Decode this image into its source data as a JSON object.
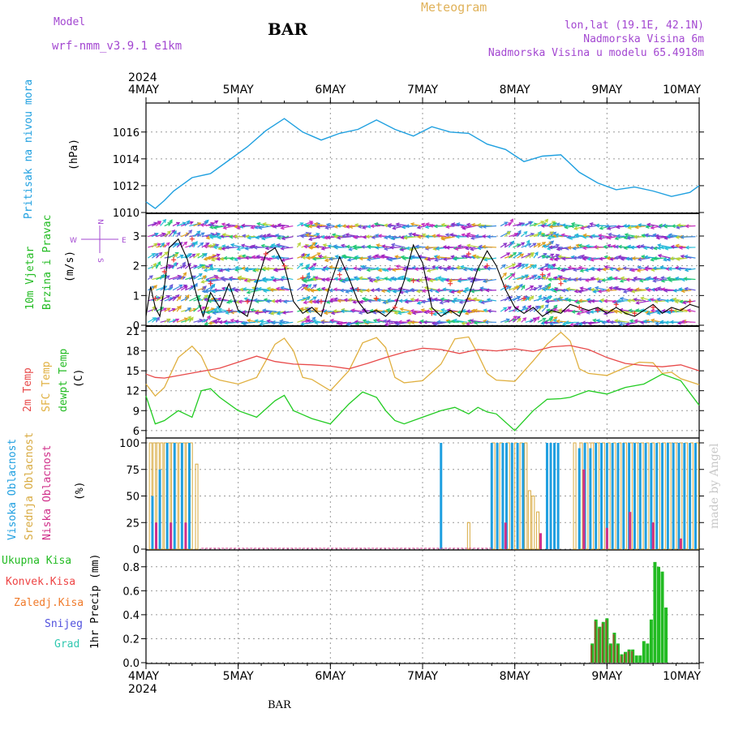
{
  "header": {
    "model_label": "Model",
    "model_name": "wrf-nmm_v3.9.1 e1km",
    "station": "BAR",
    "meteogram": "Meteogram",
    "lonlat": "lon,lat (19.1E, 42.1N)",
    "elevation": "Nadmorska Visina 6m",
    "model_elevation": "Nadmorska Visina u modelu 65.4918m"
  },
  "footer": {
    "station": "BAR",
    "credit": "made by Angel"
  },
  "time_axis": {
    "year": "2024",
    "ticks": [
      "4MAY",
      "5MAY",
      "6MAY",
      "7MAY",
      "8MAY",
      "9MAY",
      "10MAY"
    ],
    "range_days": [
      0,
      6
    ]
  },
  "colors": {
    "pressure": "#1fa0e0",
    "temp2m": "#e84a4a",
    "sfc": "#e0b040",
    "dew": "#22cc22",
    "visoka": "#1f9fe0",
    "srednja": "#d8aa40",
    "niska": "#d0308a",
    "ukupna": "#22bb22",
    "konvek": "#ee4444",
    "zaledj": "#f07a2a",
    "snijeg": "#5050dd",
    "grad": "#30c8b0",
    "wind_speed": "#000000",
    "wind_dir": "#ee3333"
  },
  "chart_data": [
    {
      "type": "line",
      "panel": "pressure",
      "labels": [
        "Pritisak na nivou mora",
        "(hPa)"
      ],
      "yticks": [
        1010,
        1012,
        1014,
        1016
      ],
      "ylim": [
        1010,
        1017.8
      ],
      "series": [
        {
          "x": [
            0,
            0.1,
            0.2,
            0.3,
            0.5,
            0.7,
            0.9,
            1.1,
            1.3,
            1.5,
            1.7,
            1.9,
            2.1,
            2.3,
            2.5,
            2.7,
            2.9,
            3.1,
            3.3,
            3.5,
            3.7,
            3.9,
            4.1,
            4.3,
            4.5,
            4.7,
            4.9,
            5.1,
            5.3,
            5.5,
            5.7,
            5.9,
            6.0
          ],
          "y": [
            1010.8,
            1010.3,
            1010.9,
            1011.6,
            1012.6,
            1012.9,
            1013.9,
            1014.9,
            1016.1,
            1017.0,
            1016.0,
            1015.4,
            1015.9,
            1016.2,
            1016.9,
            1016.2,
            1015.7,
            1016.4,
            1016.0,
            1015.9,
            1015.1,
            1014.7,
            1013.8,
            1014.2,
            1014.3,
            1013.0,
            1012.2,
            1011.7,
            1011.9,
            1011.6,
            1011.2,
            1011.5,
            1012.0
          ]
        }
      ]
    },
    {
      "type": "line",
      "panel": "wind",
      "labels": [
        "10m Vjetar",
        "Brzina i Pravac",
        "(m/s)"
      ],
      "compass": {
        "n": "N",
        "e": "E",
        "s": "S",
        "w": "W"
      },
      "yticks": [
        0,
        1,
        2,
        3
      ],
      "ylim": [
        0,
        3.6
      ],
      "series": [
        {
          "name": "speed",
          "x": [
            0,
            0.05,
            0.1,
            0.15,
            0.2,
            0.25,
            0.35,
            0.45,
            0.55,
            0.62,
            0.7,
            0.8,
            0.9,
            1.0,
            1.1,
            1.2,
            1.3,
            1.4,
            1.5,
            1.6,
            1.7,
            1.8,
            1.9,
            2.0,
            2.1,
            2.2,
            2.3,
            2.4,
            2.5,
            2.6,
            2.7,
            2.8,
            2.9,
            3.0,
            3.1,
            3.2,
            3.3,
            3.4,
            3.5,
            3.6,
            3.7,
            3.8,
            3.9,
            4.0,
            4.1,
            4.2,
            4.3,
            4.4,
            4.5,
            4.6,
            4.7,
            4.8,
            4.9,
            5.0,
            5.1,
            5.2,
            5.3,
            5.4,
            5.5,
            5.6,
            5.7,
            5.8,
            5.9,
            6.0
          ],
          "y": [
            0.3,
            1.3,
            0.6,
            0.3,
            1.3,
            2.6,
            2.9,
            2.2,
            1.0,
            0.3,
            1.1,
            0.6,
            1.4,
            0.5,
            0.3,
            1.4,
            2.4,
            2.6,
            2.0,
            0.8,
            0.4,
            0.6,
            0.3,
            1.4,
            2.3,
            1.6,
            0.8,
            0.4,
            0.5,
            0.3,
            0.6,
            1.5,
            2.7,
            2.1,
            0.6,
            0.3,
            0.5,
            0.3,
            1.0,
            1.9,
            2.5,
            2.0,
            1.2,
            0.6,
            0.4,
            0.6,
            0.3,
            0.5,
            0.4,
            0.7,
            0.6,
            0.5,
            0.6,
            0.4,
            0.6,
            0.4,
            0.3,
            0.5,
            0.7,
            0.4,
            0.6,
            0.5,
            0.7,
            0.6
          ]
        },
        {
          "name": "direction",
          "x": [
            0.1,
            0.2,
            0.3,
            0.5,
            0.7,
            0.9,
            1.1,
            1.3,
            1.5,
            1.7,
            1.9,
            2.1,
            2.3,
            2.5,
            2.7,
            2.9,
            3.1,
            3.3,
            3.5,
            3.7,
            3.9,
            4.1,
            4.3,
            4.5,
            4.7,
            4.9,
            5.1,
            5.3,
            5.5,
            5.7,
            5.9
          ],
          "y": [
            0.9,
            1.8,
            2.2,
            2.9,
            1.4,
            0.5,
            0.8,
            2.4,
            2.0,
            1.6,
            0.8,
            1.7,
            1.2,
            0.9,
            0.6,
            1.5,
            0.4,
            1.4,
            2.4,
            2.0,
            1.3,
            0.9,
            1.7,
            1.4,
            0.6,
            0.5,
            0.7,
            0.4,
            0.6,
            0.5,
            0.8
          ]
        }
      ],
      "arrows": {
        "colors": [
          "#1faad8",
          "#27c0d8",
          "#b8d43a",
          "#e0a020",
          "#6a5ad8",
          "#8a30c8",
          "#a020c0",
          "#3a8adf",
          "#22c877",
          "#c72fc0"
        ]
      }
    },
    {
      "type": "line",
      "panel": "temperature",
      "labels": [
        "2m Temp",
        "SFC Temp",
        "dewpt Temp",
        "(C)"
      ],
      "yticks": [
        6,
        9,
        12,
        15,
        18,
        21
      ],
      "ylim": [
        5,
        21
      ],
      "series": [
        {
          "name": "2m Temp",
          "x": [
            0,
            0.1,
            0.2,
            0.4,
            0.6,
            0.8,
            1.0,
            1.2,
            1.4,
            1.6,
            1.8,
            2.0,
            2.2,
            2.4,
            2.6,
            2.8,
            3.0,
            3.2,
            3.4,
            3.6,
            3.8,
            4.0,
            4.2,
            4.4,
            4.6,
            4.8,
            5.0,
            5.2,
            5.4,
            5.6,
            5.8,
            6.0
          ],
          "y": [
            14.5,
            14.0,
            13.9,
            14.4,
            14.9,
            15.4,
            16.3,
            17.2,
            16.4,
            16.0,
            15.9,
            15.7,
            15.3,
            16.1,
            17.0,
            17.8,
            18.4,
            18.2,
            17.6,
            18.2,
            18.0,
            18.3,
            17.9,
            18.6,
            18.8,
            18.2,
            17.0,
            16.1,
            15.8,
            15.6,
            15.9,
            15.0
          ]
        },
        {
          "name": "SFC Temp",
          "x": [
            0,
            0.1,
            0.2,
            0.35,
            0.5,
            0.6,
            0.7,
            0.8,
            1.0,
            1.2,
            1.4,
            1.5,
            1.6,
            1.7,
            1.8,
            2.0,
            2.2,
            2.35,
            2.5,
            2.6,
            2.7,
            2.8,
            3.0,
            3.2,
            3.35,
            3.5,
            3.6,
            3.7,
            3.8,
            4.0,
            4.2,
            4.35,
            4.5,
            4.6,
            4.7,
            4.8,
            5.0,
            5.2,
            5.35,
            5.5,
            5.6,
            5.7,
            5.8,
            6.0
          ],
          "y": [
            13.0,
            11.2,
            12.5,
            17.0,
            18.7,
            17.2,
            14.2,
            13.6,
            13.0,
            14.0,
            19.0,
            19.9,
            18.0,
            14.0,
            13.7,
            12.0,
            15.0,
            19.2,
            20.0,
            18.5,
            14.0,
            13.2,
            13.5,
            16.0,
            19.8,
            20.1,
            17.5,
            14.6,
            13.6,
            13.4,
            16.5,
            19.0,
            20.8,
            19.5,
            15.3,
            14.6,
            14.3,
            15.5,
            16.3,
            16.2,
            14.6,
            14.8,
            13.8,
            12.9
          ]
        },
        {
          "name": "dewpt Temp",
          "x": [
            0,
            0.1,
            0.2,
            0.35,
            0.5,
            0.6,
            0.7,
            0.8,
            1.0,
            1.2,
            1.4,
            1.5,
            1.6,
            1.7,
            1.8,
            2.0,
            2.2,
            2.35,
            2.5,
            2.6,
            2.7,
            2.8,
            3.0,
            3.2,
            3.35,
            3.5,
            3.6,
            3.7,
            3.8,
            4.0,
            4.2,
            4.35,
            4.5,
            4.6,
            4.8,
            5.0,
            5.2,
            5.4,
            5.6,
            5.8,
            6.0
          ],
          "y": [
            11.2,
            7.0,
            7.5,
            9.0,
            8.0,
            12.0,
            12.3,
            11.0,
            9.0,
            8.0,
            10.5,
            11.3,
            9.0,
            8.4,
            7.8,
            7.0,
            10.0,
            11.8,
            11.0,
            9.0,
            7.5,
            7.0,
            8.0,
            9.0,
            9.5,
            8.5,
            9.5,
            8.8,
            8.5,
            6.0,
            9.0,
            10.7,
            10.8,
            11.0,
            12.0,
            11.5,
            12.5,
            13.0,
            14.5,
            13.5,
            9.8
          ]
        }
      ]
    },
    {
      "type": "bar",
      "panel": "cloud",
      "labels": [
        "Visoka Oblacnost",
        "Srednja Oblacnost",
        "Niska Oblacnost",
        "(%)"
      ],
      "yticks": [
        0,
        25,
        50,
        75,
        100
      ],
      "ylim": [
        0,
        100
      ],
      "bars": [
        {
          "series": "Srednja",
          "x": [
            0.05,
            0.09,
            0.13,
            0.17,
            0.21,
            0.25,
            0.29,
            0.33,
            0.37,
            0.41,
            0.45,
            0.49,
            0.55,
            3.77,
            3.85,
            3.93,
            4.01,
            4.07,
            4.12,
            4.16,
            4.2,
            4.25,
            4.65,
            4.72,
            4.78,
            4.84,
            4.9,
            4.96,
            5.02,
            5.08,
            5.14,
            5.2,
            5.26,
            5.32,
            5.38,
            5.44,
            5.5,
            5.56,
            5.62,
            5.68,
            5.74,
            5.8,
            5.86,
            5.92,
            5.98
          ],
          "y": [
            100,
            100,
            100,
            100,
            100,
            100,
            100,
            100,
            100,
            100,
            100,
            100,
            80,
            100,
            100,
            100,
            100,
            100,
            100,
            55,
            50,
            35,
            100,
            100,
            100,
            100,
            100,
            100,
            100,
            100,
            100,
            100,
            100,
            100,
            100,
            100,
            100,
            100,
            100,
            100,
            100,
            100,
            100,
            100,
            100
          ]
        },
        {
          "series": "Visoka",
          "x": [
            0.07,
            0.15,
            0.23,
            0.31,
            0.39,
            0.47,
            3.2,
            3.75,
            3.81,
            3.87,
            3.91,
            3.97,
            4.03,
            4.09,
            4.35,
            4.39,
            4.43,
            4.47,
            4.7,
            4.76,
            4.82,
            4.88,
            4.94,
            5.0,
            5.06,
            5.12,
            5.18,
            5.24,
            5.3,
            5.36,
            5.42,
            5.48,
            5.54,
            5.6,
            5.66,
            5.72,
            5.78,
            5.84,
            5.9,
            5.96
          ],
          "y": [
            50,
            75,
            100,
            100,
            100,
            100,
            100,
            100,
            100,
            100,
            100,
            100,
            100,
            100,
            100,
            100,
            100,
            100,
            95,
            100,
            95,
            100,
            100,
            100,
            100,
            100,
            100,
            100,
            100,
            100,
            100,
            100,
            100,
            100,
            100,
            100,
            100,
            100,
            100,
            100
          ]
        },
        {
          "series": "Niska",
          "x": [
            0.11,
            0.27,
            0.43,
            3.9,
            4.28,
            4.75,
            5.0,
            5.25,
            5.5,
            5.8
          ],
          "y": [
            25,
            25,
            25,
            25,
            15,
            75,
            20,
            35,
            25,
            10
          ]
        },
        {
          "series": "Srednja",
          "x": [
            3.5
          ],
          "y": [
            25
          ]
        }
      ]
    },
    {
      "type": "bar",
      "panel": "precip",
      "labels": [
        "Ukupna Kisa",
        "Konvek.Kisa",
        "Zaledj.Kisa",
        "Snijeg",
        "Grad",
        "1hr Precip (mm)"
      ],
      "yticks": [
        0,
        0.2,
        0.4,
        0.6,
        0.8
      ],
      "ylim": [
        0,
        0.9
      ],
      "series": [
        {
          "name": "Ukupna Kisa",
          "x": [
            4.84,
            4.88,
            4.92,
            4.96,
            5.0,
            5.04,
            5.08,
            5.12,
            5.16,
            5.2,
            5.24,
            5.28,
            5.32,
            5.36,
            5.4,
            5.44,
            5.48,
            5.52,
            5.56,
            5.6,
            5.64
          ],
          "y": [
            0.16,
            0.36,
            0.3,
            0.34,
            0.37,
            0.16,
            0.25,
            0.16,
            0.07,
            0.09,
            0.11,
            0.11,
            0.06,
            0.06,
            0.18,
            0.16,
            0.36,
            0.84,
            0.8,
            0.76,
            0.46
          ]
        }
      ]
    }
  ]
}
